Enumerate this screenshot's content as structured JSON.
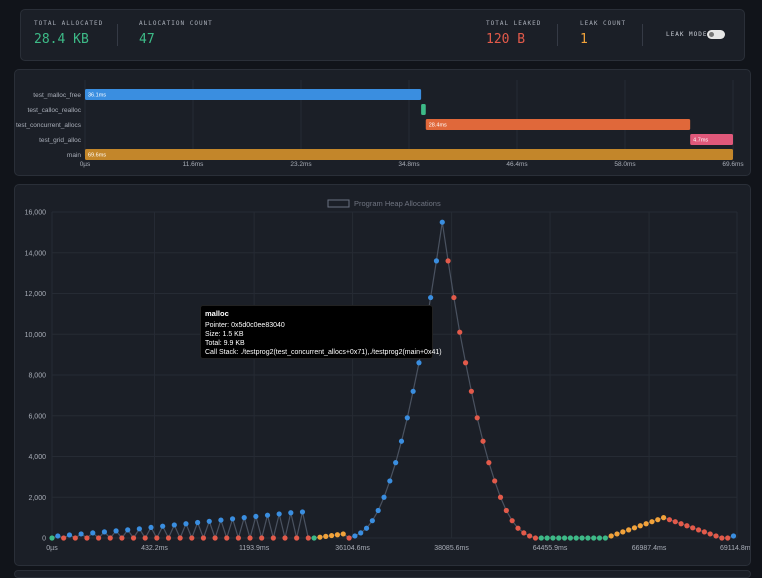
{
  "stats": {
    "total_allocated": {
      "label": "TOTAL ALLOCATED",
      "value": "28.4 KB",
      "color": "#3dba87"
    },
    "allocation_count": {
      "label": "ALLOCATION COUNT",
      "value": "47",
      "color": "#3dba87"
    },
    "total_leaked": {
      "label": "TOTAL LEAKED",
      "value": "120 B",
      "color": "#e25a4a"
    },
    "leak_count": {
      "label": "LEAK COUNT",
      "value": "1",
      "color": "#f1a23a"
    },
    "leak_mode": {
      "label": "LEAK MODE",
      "enabled": false
    }
  },
  "timeline": {
    "ticks": [
      "0µs",
      "11.6ms",
      "23.2ms",
      "34.8ms",
      "46.4ms",
      "58.0ms",
      "69.6ms"
    ],
    "tick_values_ms": [
      0,
      11.6,
      23.2,
      34.8,
      46.4,
      58.0,
      69.6
    ],
    "max_ms": 69.6,
    "rows": [
      {
        "name": "test_malloc_free",
        "start_ms": 0,
        "end_ms": 36.1,
        "label": "36.1ms",
        "color": "#3a8ee0"
      },
      {
        "name": "test_calloc_realloc",
        "start_ms": 36.1,
        "end_ms": 36.6,
        "label": "",
        "color": "#3dba87"
      },
      {
        "name": "test_concurrent_allocs",
        "start_ms": 36.6,
        "end_ms": 65.0,
        "label": "28.4ms",
        "color": "#e0683a"
      },
      {
        "name": "test_grid_alloc",
        "start_ms": 65.0,
        "end_ms": 69.6,
        "label": "4.7ms",
        "color": "#e0587a"
      },
      {
        "name": "main",
        "start_ms": 0,
        "end_ms": 69.6,
        "label": "69.6ms",
        "color": "#c3862a"
      }
    ]
  },
  "chart_data": {
    "type": "line",
    "title": "Program Heap Allocations",
    "ylim": [
      0,
      16000
    ],
    "yticks": [
      "0",
      "2,000",
      "4,000",
      "6,000",
      "8,000",
      "10,000",
      "12,000",
      "14,000",
      "16,000"
    ],
    "ytick_values": [
      0,
      2000,
      4000,
      6000,
      8000,
      10000,
      12000,
      14000,
      16000
    ],
    "xticks": [
      "0µs",
      "432.2ms",
      "1193.9ms",
      "36104.6ms",
      "38085.6ms",
      "64455.9ms",
      "66987.4ms",
      "69114.8ms"
    ],
    "xtick_positions": [
      0,
      17.6,
      34.7,
      51.6,
      68.6,
      85.5,
      102.5,
      117.6
    ],
    "colors": {
      "blue": "#3a8ee0",
      "red": "#e25a4a",
      "orange": "#f1a23a",
      "green": "#3dba87"
    },
    "points": [
      {
        "x": 0,
        "y": 0,
        "c": "green"
      },
      {
        "x": 1,
        "y": 100,
        "c": "blue"
      },
      {
        "x": 2,
        "y": 0,
        "c": "red"
      },
      {
        "x": 3,
        "y": 150,
        "c": "blue"
      },
      {
        "x": 4,
        "y": 0,
        "c": "red"
      },
      {
        "x": 5,
        "y": 200,
        "c": "blue"
      },
      {
        "x": 6,
        "y": 0,
        "c": "red"
      },
      {
        "x": 7,
        "y": 250,
        "c": "blue"
      },
      {
        "x": 8,
        "y": 0,
        "c": "red"
      },
      {
        "x": 9,
        "y": 300,
        "c": "blue"
      },
      {
        "x": 10,
        "y": 0,
        "c": "red"
      },
      {
        "x": 11,
        "y": 350,
        "c": "blue"
      },
      {
        "x": 12,
        "y": 0,
        "c": "red"
      },
      {
        "x": 13,
        "y": 400,
        "c": "blue"
      },
      {
        "x": 14,
        "y": 0,
        "c": "red"
      },
      {
        "x": 15,
        "y": 450,
        "c": "blue"
      },
      {
        "x": 16,
        "y": 0,
        "c": "red"
      },
      {
        "x": 17,
        "y": 520,
        "c": "blue"
      },
      {
        "x": 18,
        "y": 0,
        "c": "red"
      },
      {
        "x": 19,
        "y": 580,
        "c": "blue"
      },
      {
        "x": 20,
        "y": 0,
        "c": "red"
      },
      {
        "x": 21,
        "y": 640,
        "c": "blue"
      },
      {
        "x": 22,
        "y": 0,
        "c": "red"
      },
      {
        "x": 23,
        "y": 700,
        "c": "blue"
      },
      {
        "x": 24,
        "y": 0,
        "c": "red"
      },
      {
        "x": 25,
        "y": 760,
        "c": "blue"
      },
      {
        "x": 26,
        "y": 0,
        "c": "red"
      },
      {
        "x": 27,
        "y": 820,
        "c": "blue"
      },
      {
        "x": 28,
        "y": 0,
        "c": "red"
      },
      {
        "x": 29,
        "y": 880,
        "c": "blue"
      },
      {
        "x": 30,
        "y": 0,
        "c": "red"
      },
      {
        "x": 31,
        "y": 940,
        "c": "blue"
      },
      {
        "x": 32,
        "y": 0,
        "c": "red"
      },
      {
        "x": 33,
        "y": 1000,
        "c": "blue"
      },
      {
        "x": 34,
        "y": 0,
        "c": "red"
      },
      {
        "x": 35,
        "y": 1060,
        "c": "blue"
      },
      {
        "x": 36,
        "y": 0,
        "c": "red"
      },
      {
        "x": 37,
        "y": 1120,
        "c": "blue"
      },
      {
        "x": 38,
        "y": 0,
        "c": "red"
      },
      {
        "x": 39,
        "y": 1180,
        "c": "blue"
      },
      {
        "x": 40,
        "y": 0,
        "c": "red"
      },
      {
        "x": 41,
        "y": 1240,
        "c": "blue"
      },
      {
        "x": 42,
        "y": 0,
        "c": "red"
      },
      {
        "x": 43,
        "y": 1280,
        "c": "blue"
      },
      {
        "x": 44,
        "y": 0,
        "c": "red"
      },
      {
        "x": 45,
        "y": 0,
        "c": "green"
      },
      {
        "x": 46,
        "y": 40,
        "c": "orange"
      },
      {
        "x": 47,
        "y": 80,
        "c": "orange"
      },
      {
        "x": 48,
        "y": 120,
        "c": "orange"
      },
      {
        "x": 49,
        "y": 160,
        "c": "orange"
      },
      {
        "x": 50,
        "y": 200,
        "c": "orange"
      },
      {
        "x": 51,
        "y": 0,
        "c": "red"
      },
      {
        "x": 52,
        "y": 100,
        "c": "blue"
      },
      {
        "x": 53,
        "y": 250,
        "c": "blue"
      },
      {
        "x": 54,
        "y": 480,
        "c": "blue"
      },
      {
        "x": 55,
        "y": 850,
        "c": "blue"
      },
      {
        "x": 56,
        "y": 1350,
        "c": "blue"
      },
      {
        "x": 57,
        "y": 2000,
        "c": "blue"
      },
      {
        "x": 58,
        "y": 2800,
        "c": "blue"
      },
      {
        "x": 59,
        "y": 3700,
        "c": "blue"
      },
      {
        "x": 60,
        "y": 4750,
        "c": "blue"
      },
      {
        "x": 61,
        "y": 5900,
        "c": "blue"
      },
      {
        "x": 62,
        "y": 7200,
        "c": "blue"
      },
      {
        "x": 63,
        "y": 8600,
        "c": "blue"
      },
      {
        "x": 64,
        "y": 10100,
        "c": "blue"
      },
      {
        "x": 65,
        "y": 11800,
        "c": "blue"
      },
      {
        "x": 66,
        "y": 13600,
        "c": "blue"
      },
      {
        "x": 67,
        "y": 15500,
        "c": "blue"
      },
      {
        "x": 68,
        "y": 13600,
        "c": "red"
      },
      {
        "x": 69,
        "y": 11800,
        "c": "red"
      },
      {
        "x": 70,
        "y": 10100,
        "c": "red"
      },
      {
        "x": 71,
        "y": 8600,
        "c": "red"
      },
      {
        "x": 72,
        "y": 7200,
        "c": "red"
      },
      {
        "x": 73,
        "y": 5900,
        "c": "red"
      },
      {
        "x": 74,
        "y": 4750,
        "c": "red"
      },
      {
        "x": 75,
        "y": 3700,
        "c": "red"
      },
      {
        "x": 76,
        "y": 2800,
        "c": "red"
      },
      {
        "x": 77,
        "y": 2000,
        "c": "red"
      },
      {
        "x": 78,
        "y": 1350,
        "c": "red"
      },
      {
        "x": 79,
        "y": 850,
        "c": "red"
      },
      {
        "x": 80,
        "y": 480,
        "c": "red"
      },
      {
        "x": 81,
        "y": 250,
        "c": "red"
      },
      {
        "x": 82,
        "y": 100,
        "c": "red"
      },
      {
        "x": 83,
        "y": 0,
        "c": "red"
      },
      {
        "x": 84,
        "y": 0,
        "c": "green"
      },
      {
        "x": 85,
        "y": 0,
        "c": "green"
      },
      {
        "x": 86,
        "y": 0,
        "c": "green"
      },
      {
        "x": 87,
        "y": 0,
        "c": "green"
      },
      {
        "x": 88,
        "y": 0,
        "c": "green"
      },
      {
        "x": 89,
        "y": 0,
        "c": "green"
      },
      {
        "x": 90,
        "y": 0,
        "c": "green"
      },
      {
        "x": 91,
        "y": 0,
        "c": "green"
      },
      {
        "x": 92,
        "y": 0,
        "c": "green"
      },
      {
        "x": 93,
        "y": 0,
        "c": "green"
      },
      {
        "x": 94,
        "y": 0,
        "c": "green"
      },
      {
        "x": 95,
        "y": 0,
        "c": "green"
      },
      {
        "x": 96,
        "y": 100,
        "c": "orange"
      },
      {
        "x": 97,
        "y": 200,
        "c": "orange"
      },
      {
        "x": 98,
        "y": 300,
        "c": "orange"
      },
      {
        "x": 99,
        "y": 400,
        "c": "orange"
      },
      {
        "x": 100,
        "y": 500,
        "c": "orange"
      },
      {
        "x": 101,
        "y": 600,
        "c": "orange"
      },
      {
        "x": 102,
        "y": 700,
        "c": "orange"
      },
      {
        "x": 103,
        "y": 800,
        "c": "orange"
      },
      {
        "x": 104,
        "y": 900,
        "c": "orange"
      },
      {
        "x": 105,
        "y": 1000,
        "c": "orange"
      },
      {
        "x": 106,
        "y": 900,
        "c": "red"
      },
      {
        "x": 107,
        "y": 800,
        "c": "red"
      },
      {
        "x": 108,
        "y": 700,
        "c": "red"
      },
      {
        "x": 109,
        "y": 600,
        "c": "red"
      },
      {
        "x": 110,
        "y": 500,
        "c": "red"
      },
      {
        "x": 111,
        "y": 400,
        "c": "red"
      },
      {
        "x": 112,
        "y": 300,
        "c": "red"
      },
      {
        "x": 113,
        "y": 200,
        "c": "red"
      },
      {
        "x": 114,
        "y": 100,
        "c": "red"
      },
      {
        "x": 115,
        "y": 0,
        "c": "red"
      },
      {
        "x": 116,
        "y": 0,
        "c": "red"
      },
      {
        "x": 117,
        "y": 100,
        "c": "blue"
      }
    ]
  },
  "tooltip": {
    "title": "malloc",
    "pointer": "Pointer: 0x5d0c0ee83040",
    "size": "Size: 1.5 KB",
    "total": "Total: 9.9 KB",
    "call_stack": "Call Stack: ./testprog2(test_concurrent_allocs+0x71),./testprog2(main+0x41)"
  }
}
